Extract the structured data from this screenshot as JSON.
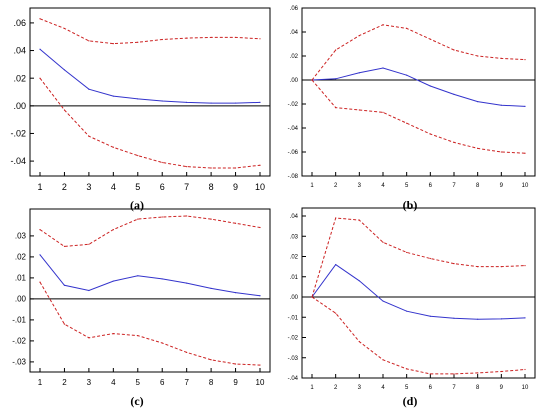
{
  "chart_data": [
    {
      "type": "line",
      "caption": "(a)",
      "x": [
        1,
        2,
        3,
        4,
        5,
        6,
        7,
        8,
        9,
        10
      ],
      "xticks": [
        "1",
        "2",
        "3",
        "4",
        "5",
        "6",
        "7",
        "8",
        "9",
        "10"
      ],
      "ylim": [
        -0.045,
        0.065
      ],
      "yticks": [
        ".06",
        ".04",
        ".02",
        ".00",
        "-.02",
        "-.04"
      ],
      "ytick_values": [
        0.06,
        0.04,
        0.02,
        0.0,
        -0.02,
        -0.04
      ],
      "tick_font": 9,
      "zero_line": true,
      "series": [
        {
          "role": "response",
          "color": "#3333cc",
          "style": "solid",
          "values": [
            0.041,
            0.026,
            0.012,
            0.007,
            0.005,
            0.0035,
            0.0025,
            0.002,
            0.002,
            0.0025
          ]
        },
        {
          "role": "upper band",
          "color": "#cc2222",
          "style": "dashed",
          "values": [
            0.063,
            0.056,
            0.047,
            0.045,
            0.046,
            0.048,
            0.049,
            0.0495,
            0.0495,
            0.0485
          ]
        },
        {
          "role": "lower band",
          "color": "#cc2222",
          "style": "dashed",
          "values": [
            0.02,
            -0.003,
            -0.022,
            -0.03,
            -0.036,
            -0.041,
            -0.044,
            -0.045,
            -0.045,
            -0.043
          ]
        }
      ]
    },
    {
      "type": "line",
      "caption": "(b)",
      "x": [
        1,
        2,
        3,
        4,
        5,
        6,
        7,
        8,
        9,
        10
      ],
      "xticks": [
        "1",
        "2",
        "3",
        "4",
        "5",
        "6",
        "7",
        "8",
        "9",
        "10"
      ],
      "ylim": [
        -0.08,
        0.06
      ],
      "yticks": [
        ".06",
        ".04",
        ".02",
        ".00",
        "-.02",
        "-.04",
        "-.06",
        "-.08"
      ],
      "ytick_values": [
        0.06,
        0.04,
        0.02,
        0.0,
        -0.02,
        -0.04,
        -0.06,
        -0.08
      ],
      "tick_font": 6,
      "zero_line": true,
      "series": [
        {
          "role": "response",
          "color": "#3333cc",
          "style": "solid",
          "values": [
            0.0,
            0.001,
            0.006,
            0.01,
            0.004,
            -0.005,
            -0.012,
            -0.018,
            -0.021,
            -0.022
          ]
        },
        {
          "role": "upper band",
          "color": "#cc2222",
          "style": "dashed",
          "values": [
            0.0,
            0.025,
            0.037,
            0.046,
            0.043,
            0.034,
            0.025,
            0.02,
            0.018,
            0.017
          ]
        },
        {
          "role": "lower band",
          "color": "#cc2222",
          "style": "dashed",
          "values": [
            0.0,
            -0.023,
            -0.025,
            -0.027,
            -0.036,
            -0.045,
            -0.052,
            -0.057,
            -0.06,
            -0.061
          ]
        }
      ]
    },
    {
      "type": "line",
      "caption": "(c)",
      "x": [
        1,
        2,
        3,
        4,
        5,
        6,
        7,
        8,
        9,
        10
      ],
      "xticks": [
        "1",
        "2",
        "3",
        "4",
        "5",
        "6",
        "7",
        "8",
        "9",
        "10"
      ],
      "ylim": [
        -0.031,
        0.039
      ],
      "yticks": [
        ".03",
        ".02",
        ".01",
        ".00",
        "-.01",
        "-.02",
        "-.03"
      ],
      "ytick_values": [
        0.03,
        0.02,
        0.01,
        0.0,
        -0.01,
        -0.02,
        -0.03
      ],
      "tick_font": 8,
      "zero_line": true,
      "series": [
        {
          "role": "response",
          "color": "#3333cc",
          "style": "solid",
          "values": [
            0.021,
            0.0065,
            0.004,
            0.0085,
            0.011,
            0.0095,
            0.0075,
            0.005,
            0.003,
            0.0015
          ]
        },
        {
          "role": "upper band",
          "color": "#cc2222",
          "style": "dashed",
          "values": [
            0.033,
            0.025,
            0.026,
            0.033,
            0.038,
            0.039,
            0.0395,
            0.038,
            0.036,
            0.034
          ]
        },
        {
          "role": "lower band",
          "color": "#cc2222",
          "style": "dashed",
          "values": [
            0.008,
            -0.012,
            -0.0185,
            -0.0165,
            -0.0175,
            -0.021,
            -0.0255,
            -0.029,
            -0.031,
            -0.0315
          ]
        }
      ]
    },
    {
      "type": "line",
      "caption": "(d)",
      "x": [
        1,
        2,
        3,
        4,
        5,
        6,
        7,
        8,
        9,
        10
      ],
      "xticks": [
        "1",
        "2",
        "3",
        "4",
        "5",
        "6",
        "7",
        "8",
        "9",
        "10"
      ],
      "ylim": [
        -0.04,
        0.04
      ],
      "yticks": [
        ".04",
        ".03",
        ".02",
        ".01",
        ".00",
        "-.01",
        "-.02",
        "-.03",
        "-.04"
      ],
      "ytick_values": [
        0.04,
        0.03,
        0.02,
        0.01,
        0.0,
        -0.01,
        -0.02,
        -0.03,
        -0.04
      ],
      "tick_font": 6,
      "zero_line": true,
      "series": [
        {
          "role": "response",
          "color": "#3333cc",
          "style": "solid",
          "values": [
            0.0,
            0.016,
            0.008,
            -0.002,
            -0.007,
            -0.0095,
            -0.0105,
            -0.011,
            -0.0108,
            -0.0103
          ]
        },
        {
          "role": "upper band",
          "color": "#cc2222",
          "style": "dashed",
          "values": [
            0.0,
            0.039,
            0.038,
            0.027,
            0.022,
            0.019,
            0.0165,
            0.015,
            0.015,
            0.0155
          ]
        },
        {
          "role": "lower band",
          "color": "#cc2222",
          "style": "dashed",
          "values": [
            0.0,
            -0.008,
            -0.022,
            -0.031,
            -0.0355,
            -0.038,
            -0.038,
            -0.0375,
            -0.0368,
            -0.0358
          ]
        }
      ]
    }
  ]
}
